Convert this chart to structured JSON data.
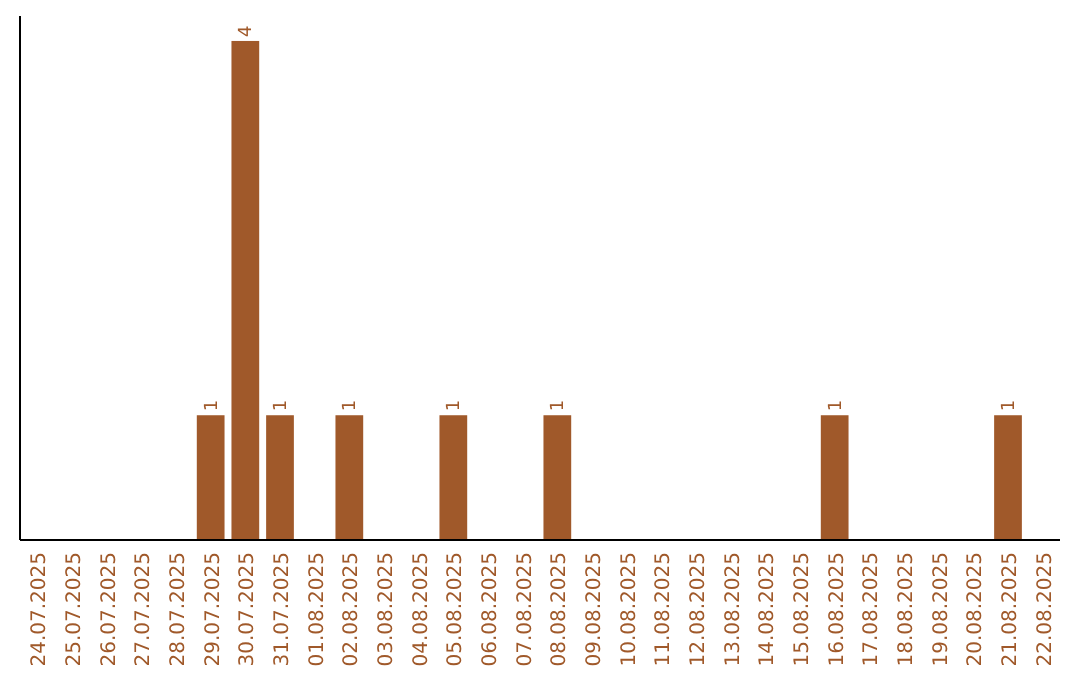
{
  "chart_data": {
    "type": "bar",
    "categories": [
      "24.07.2025",
      "25.07.2025",
      "26.07.2025",
      "27.07.2025",
      "28.07.2025",
      "29.07.2025",
      "30.07.2025",
      "31.07.2025",
      "01.08.2025",
      "02.08.2025",
      "03.08.2025",
      "04.08.2025",
      "05.08.2025",
      "06.08.2025",
      "07.08.2025",
      "08.08.2025",
      "09.08.2025",
      "10.08.2025",
      "11.08.2025",
      "12.08.2025",
      "13.08.2025",
      "14.08.2025",
      "15.08.2025",
      "16.08.2025",
      "17.08.2025",
      "18.08.2025",
      "19.08.2025",
      "20.08.2025",
      "21.08.2025",
      "22.08.2025"
    ],
    "values": [
      0,
      0,
      0,
      0,
      0,
      1,
      4,
      1,
      0,
      1,
      0,
      0,
      1,
      0,
      0,
      1,
      0,
      0,
      0,
      0,
      0,
      0,
      0,
      1,
      0,
      0,
      0,
      0,
      1,
      0
    ],
    "value_labels": [
      null,
      null,
      null,
      null,
      null,
      "1",
      "4",
      "1",
      null,
      "1",
      null,
      null,
      "1",
      null,
      null,
      "1",
      null,
      null,
      null,
      null,
      null,
      null,
      null,
      "1",
      null,
      null,
      null,
      null,
      "1",
      null
    ],
    "color": "#a0592a",
    "ylim": [
      0,
      4.2
    ],
    "tick_labels": "x"
  }
}
